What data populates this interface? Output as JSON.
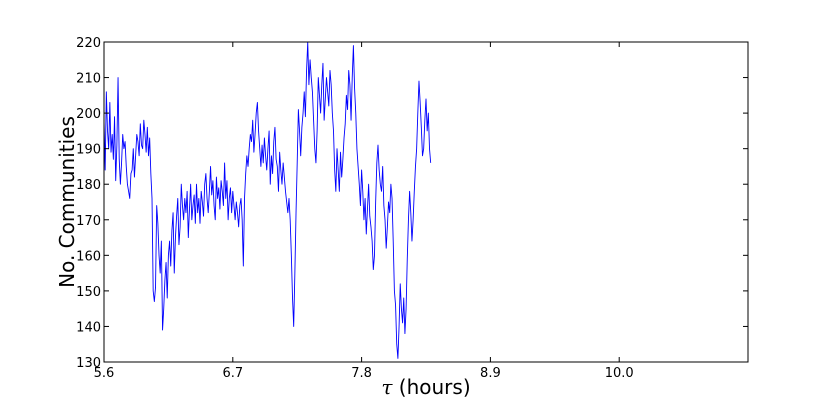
{
  "chart_data": {
    "type": "line",
    "title": "",
    "xlabel_symbol": "τ",
    "xlabel_text": " (hours)",
    "ylabel": "No. Communities",
    "xlim": [
      5.6,
      11.1
    ],
    "ylim": [
      130,
      220
    ],
    "x_ticks": [
      5.6,
      6.7,
      7.8,
      8.9,
      10.0
    ],
    "x_tick_labels": [
      "5.6",
      "6.7",
      "7.8",
      "8.9",
      "10.0"
    ],
    "y_ticks": [
      130,
      140,
      150,
      160,
      170,
      180,
      190,
      200,
      210,
      220
    ],
    "y_tick_labels": [
      "130",
      "140",
      "150",
      "160",
      "170",
      "180",
      "190",
      "200",
      "210",
      "220"
    ],
    "grid": false,
    "series": [
      {
        "color": "#0000ff",
        "x_start": 5.6,
        "x_step": 0.01,
        "values": [
          198,
          184,
          206,
          195,
          190,
          203,
          189,
          194,
          187,
          199,
          181,
          191,
          210,
          187,
          180,
          186,
          194,
          190,
          192,
          185,
          180,
          178,
          176,
          183,
          184,
          190,
          182,
          188,
          194,
          192,
          188,
          197,
          191,
          190,
          198,
          194,
          189,
          196,
          188,
          193,
          183,
          176,
          150,
          147,
          151,
          174,
          169,
          160,
          155,
          164,
          139,
          145,
          153,
          158,
          148,
          160,
          164,
          157,
          167,
          172,
          155,
          165,
          171,
          176,
          163,
          168,
          180,
          174,
          170,
          176,
          172,
          178,
          165,
          173,
          180,
          170,
          174,
          177,
          169,
          180,
          172,
          176,
          169,
          178,
          175,
          171,
          180,
          183,
          176,
          172,
          178,
          185,
          177,
          181,
          174,
          170,
          182,
          176,
          179,
          173,
          181,
          178,
          174,
          186,
          176,
          181,
          170,
          176,
          179,
          172,
          178,
          174,
          170,
          175,
          172,
          168,
          174,
          176,
          170,
          157,
          176,
          183,
          188,
          185,
          190,
          194,
          192,
          198,
          189,
          194,
          200,
          203,
          195,
          190,
          185,
          191,
          186,
          193,
          188,
          184,
          190,
          195,
          180,
          188,
          183,
          192,
          196,
          187,
          185,
          178,
          189,
          184,
          180,
          186,
          182,
          178,
          175,
          172,
          176,
          170,
          160,
          148,
          140,
          155,
          172,
          186,
          201,
          195,
          188,
          196,
          200,
          206,
          199,
          212,
          220,
          208,
          215,
          210,
          206,
          198,
          190,
          186,
          195,
          210,
          205,
          200,
          208,
          214,
          198,
          204,
          210,
          206,
          202,
          212,
          208,
          200,
          195,
          184,
          178,
          190,
          184,
          178,
          189,
          182,
          187,
          193,
          197,
          205,
          201,
          212,
          208,
          198,
          210,
          219,
          207,
          200,
          190,
          185,
          180,
          174,
          184,
          178,
          170,
          176,
          166,
          173,
          180,
          171,
          168,
          164,
          156,
          160,
          175,
          186,
          191,
          184,
          180,
          178,
          185,
          174,
          170,
          162,
          168,
          175,
          172,
          180,
          176,
          164,
          150,
          146,
          135,
          131,
          140,
          152,
          145,
          141,
          148,
          138,
          145,
          159,
          170,
          178,
          172,
          164,
          170,
          178,
          185,
          190,
          200,
          209,
          203,
          196,
          188,
          190,
          198,
          204,
          195,
          200,
          190,
          186
        ]
      }
    ]
  }
}
